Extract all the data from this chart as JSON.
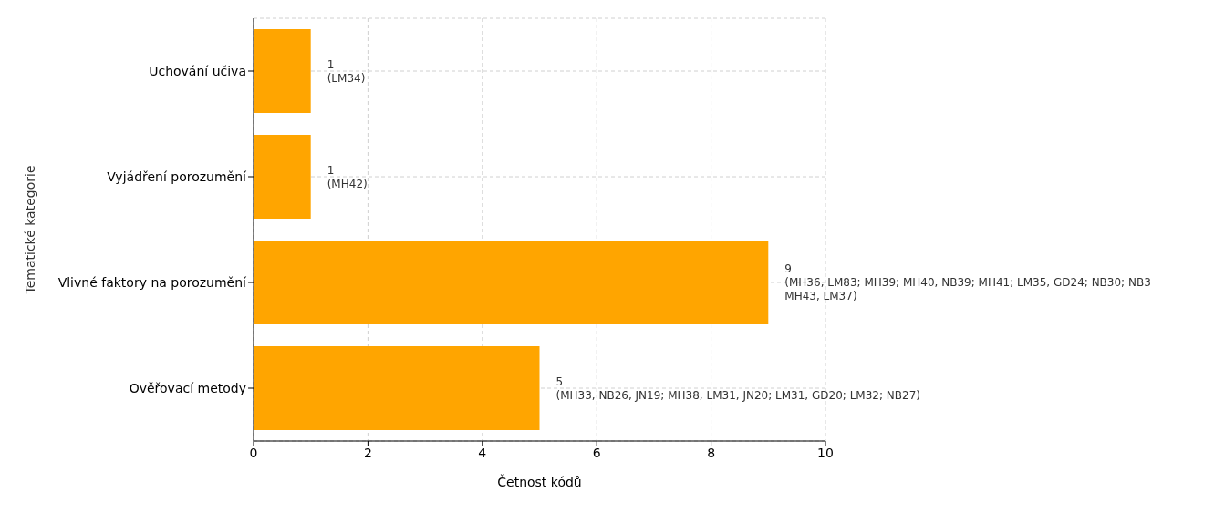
{
  "chart_data": {
    "type": "bar",
    "orientation": "horizontal",
    "xlabel": "Četnost kódů",
    "ylabel": "Tematické kategorie",
    "categories": [
      "Uchování učiva",
      "Vyjádření porozumění",
      "Vlivné faktory na porozumění",
      "Ověřovací metody"
    ],
    "values": [
      1,
      1,
      9,
      5
    ],
    "color": "#ffa500",
    "value_labels": [
      "1\n(LM34)",
      "1\n(MH42)",
      "9\n(MH36, LM83; MH39; MH40, NB39; MH41; LM35, GD24; NB30; NB3\nMH43, LM37)",
      "5\n(MH33, NB26, JN19; MH38, LM31, JN20; LM31, GD20; LM32; NB27)"
    ],
    "xlim": [
      0,
      10
    ],
    "xticks": [
      0,
      2,
      4,
      6,
      8,
      10
    ],
    "grid": true
  }
}
